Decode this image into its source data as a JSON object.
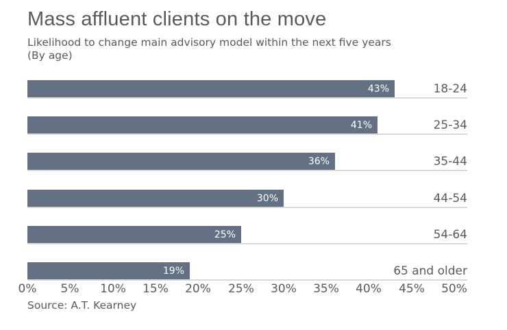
{
  "chart": {
    "title": "Mass affluent clients on the move",
    "subtitle_line1": "Likelihood to change main advisory model within the next five years",
    "subtitle_line2": "(By age)",
    "source": "Source: A.T. Kearney"
  },
  "chart_data": {
    "type": "bar",
    "orientation": "horizontal",
    "title": "Mass affluent clients on the move",
    "subtitle": "Likelihood to change main advisory model within the next five years (By age)",
    "categories": [
      "18-24",
      "25-34",
      "35-44",
      "44-54",
      "54-64",
      "65 and older"
    ],
    "values": [
      43,
      41,
      36,
      30,
      25,
      19
    ],
    "value_labels": [
      "43%",
      "41%",
      "36%",
      "30%",
      "25%",
      "19%"
    ],
    "xlabel": "",
    "ylabel": "",
    "xlim": [
      0,
      50
    ],
    "x_tick_labels": [
      "0%",
      "5%",
      "10%",
      "15%",
      "20%",
      "25%",
      "30%",
      "35%",
      "40%",
      "45%",
      "50%"
    ],
    "x_tick_values": [
      0,
      5,
      10,
      15,
      20,
      25,
      30,
      35,
      40,
      45,
      50
    ],
    "grid": false,
    "legend": "none",
    "bar_color": "#647084",
    "value_label_color": "#ffffff",
    "text_color": "#595959",
    "baseline_color": "#d9d9d9",
    "source": "Source: A.T. Kearney"
  }
}
